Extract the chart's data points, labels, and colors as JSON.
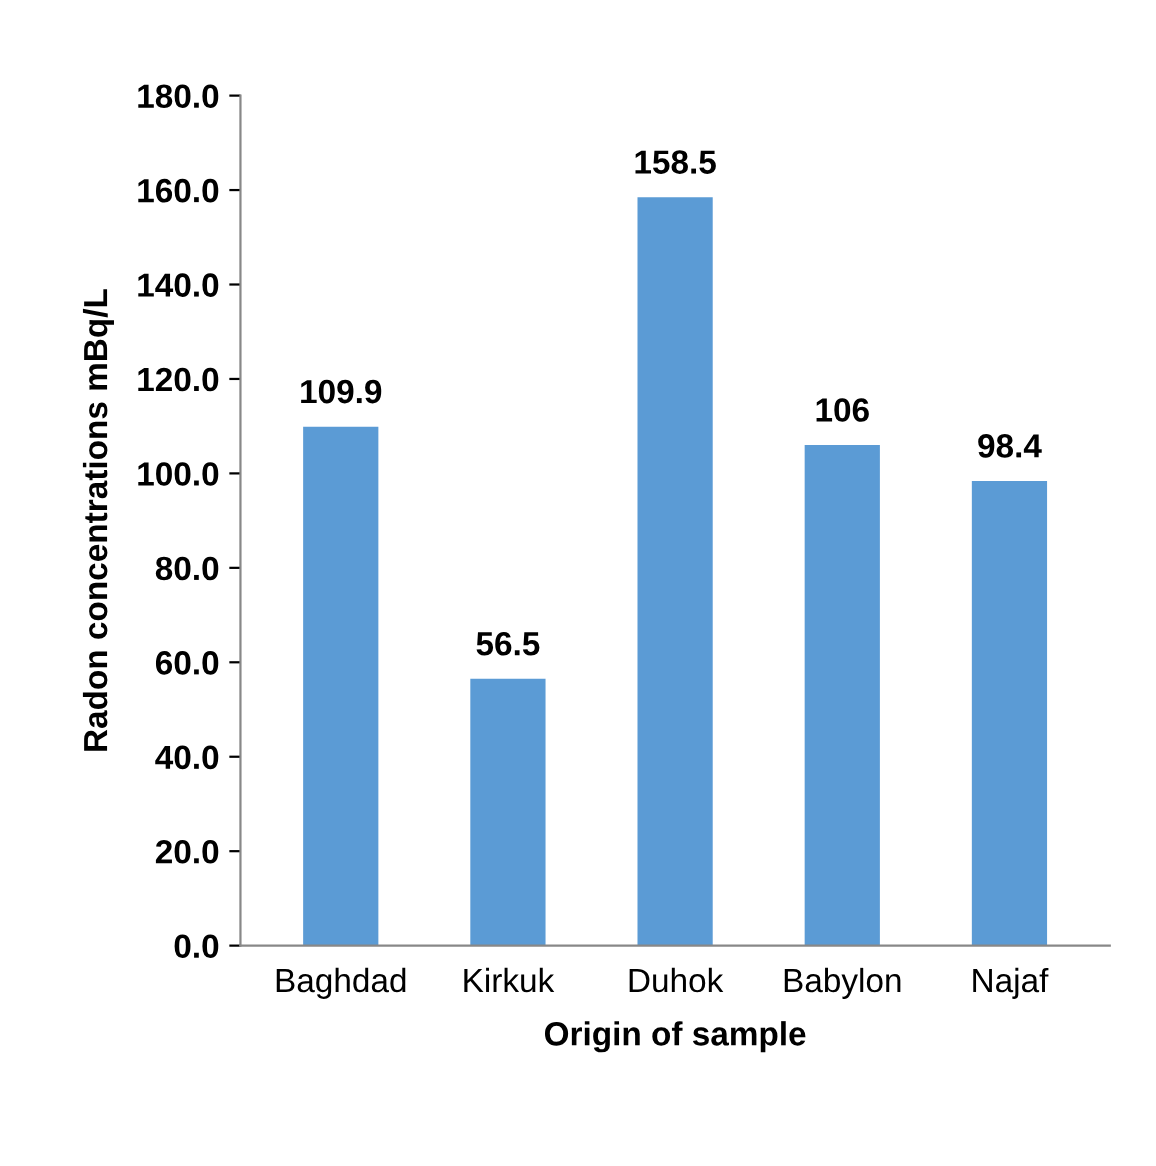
{
  "chart_data": {
    "type": "bar",
    "xlabel": "Origin of sample",
    "ylabel": "Radon concentrations mBq/L",
    "categories": [
      "Baghdad",
      "Kirkuk",
      "Duhok",
      "Babylon",
      "Najaf"
    ],
    "values": [
      109.9,
      56.5,
      158.5,
      106,
      98.4
    ],
    "color": "#5b9bd5",
    "ylim": [
      0,
      180
    ],
    "yticks": [
      {
        "value": 0,
        "label": "0.0"
      },
      {
        "value": 20,
        "label": "20.0"
      },
      {
        "value": 40,
        "label": "40.0"
      },
      {
        "value": 60,
        "label": "60.0"
      },
      {
        "value": 80,
        "label": "80.0"
      },
      {
        "value": 100,
        "label": "100.0"
      },
      {
        "value": 120,
        "label": "120.0"
      },
      {
        "value": 140,
        "label": "140.0"
      },
      {
        "value": 160,
        "label": "160.0"
      },
      {
        "value": 180,
        "label": "180.0"
      }
    ],
    "data_labels": true,
    "grid": false,
    "legend": false
  }
}
